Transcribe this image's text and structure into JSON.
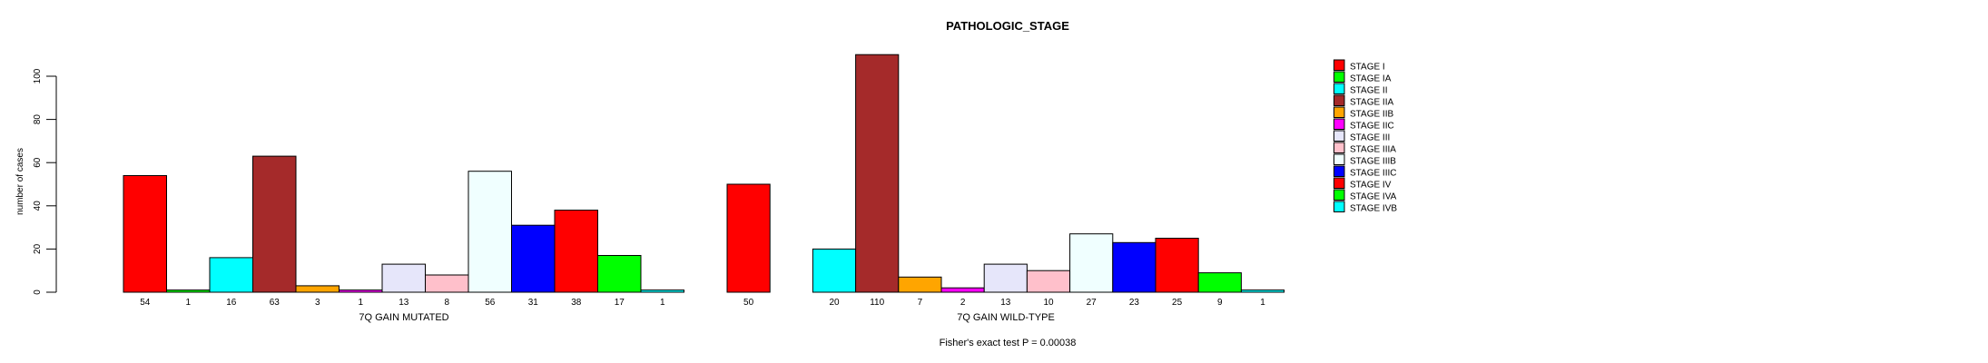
{
  "chart_data": {
    "type": "bar",
    "title": "PATHOLOGIC_STAGE",
    "ylabel": "number of cases",
    "footnote": "Fisher's exact test P = 0.00038",
    "categories": [
      "STAGE I",
      "STAGE IA",
      "STAGE II",
      "STAGE IIA",
      "STAGE IIB",
      "STAGE IIC",
      "STAGE III",
      "STAGE IIIA",
      "STAGE IIIB",
      "STAGE IIIC",
      "STAGE IV",
      "STAGE IVA",
      "STAGE IVB"
    ],
    "colors": [
      "#FF0000",
      "#00FF00",
      "#00FFFF",
      "#A52A2A",
      "#FFA500",
      "#FF00FF",
      "#E6E6FA",
      "#FFC0CB",
      "#F0FFFF",
      "#0000FF",
      "#FF0000",
      "#00FF00",
      "#00FFFF"
    ],
    "series": [
      {
        "name": "7Q GAIN MUTATED",
        "values": [
          54,
          1,
          16,
          63,
          3,
          1,
          13,
          8,
          56,
          31,
          38,
          17,
          1
        ]
      },
      {
        "name": "7Q GAIN WILD-TYPE",
        "values": [
          50,
          0,
          20,
          110,
          7,
          2,
          13,
          10,
          27,
          23,
          25,
          9,
          1
        ]
      }
    ],
    "ylim": [
      0,
      100
    ],
    "yticks": [
      0,
      20,
      40,
      60,
      80,
      100
    ],
    "legend_position": "right",
    "grid": false,
    "bar_border_color": "#000000",
    "background_color": "#FFFFFF",
    "text_color": "#000000"
  }
}
